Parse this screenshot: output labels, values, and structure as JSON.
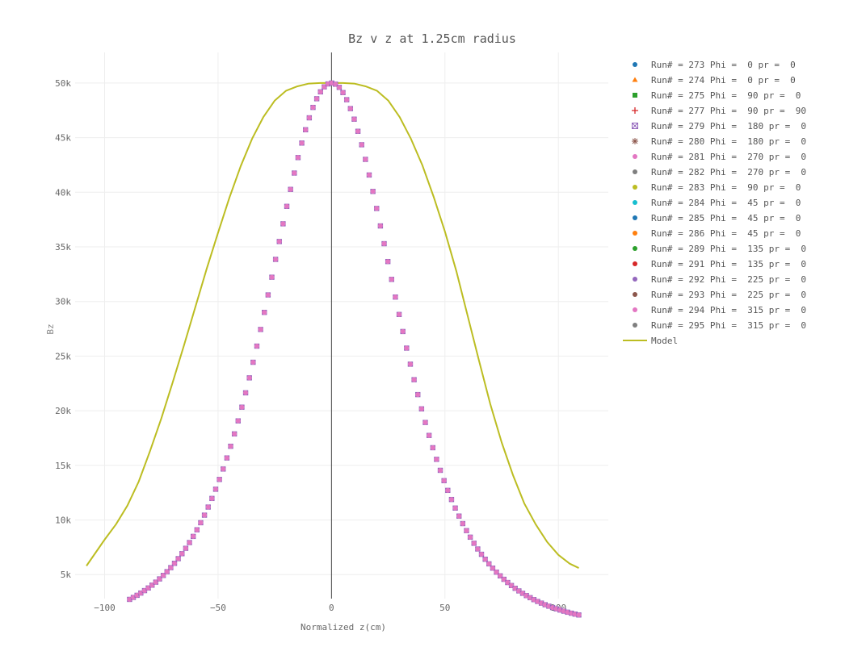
{
  "chart_data": {
    "type": "scatter",
    "title": "Bz v z at 1.25cm radius",
    "xlabel": "Normalized z(cm)",
    "ylabel": "Bz",
    "xlim": [
      -113,
      122
    ],
    "ylim": [
      2800,
      52800
    ],
    "x_ticks": [
      -100,
      -50,
      0,
      50,
      100
    ],
    "x_tick_labels": [
      "−100",
      "−50",
      "0",
      "50",
      "100"
    ],
    "y_ticks": [
      5000,
      10000,
      15000,
      20000,
      25000,
      30000,
      35000,
      40000,
      45000,
      50000
    ],
    "y_tick_labels": [
      "5k",
      "10k",
      "15k",
      "20k",
      "25k",
      "30k",
      "35k",
      "40k",
      "45k",
      "50k"
    ],
    "grid": true,
    "legend_position": "right",
    "measurement_shape": {
      "description": "Bz = amplitude / (1 + (z/scale)^2)^power, sampled at spacing",
      "amplitude": 50000,
      "scale": 60,
      "power": 2.5,
      "z_start": -89,
      "z_end": 109,
      "spacing": 1.65
    },
    "series": [
      {
        "name": "Run# = 273 Phi =  0 pr =  0",
        "color": "#1f77b4",
        "marker": "circle"
      },
      {
        "name": "Run# = 274 Phi =  0 pr =  0",
        "color": "#ff7f0e",
        "marker": "triangle-up"
      },
      {
        "name": "Run# = 275 Phi =  90 pr =  0",
        "color": "#2ca02c",
        "marker": "square"
      },
      {
        "name": "Run# = 277 Phi =  90 pr =  90",
        "color": "#d62728",
        "marker": "cross"
      },
      {
        "name": "Run# = 279 Phi =  180 pr =  0",
        "color": "#9467bd",
        "marker": "square-x-open"
      },
      {
        "name": "Run# = 280 Phi =  180 pr =  0",
        "color": "#8c564b",
        "marker": "asterisk"
      },
      {
        "name": "Run# = 281 Phi =  270 pr =  0",
        "color": "#e377c2",
        "marker": "circle"
      },
      {
        "name": "Run# = 282 Phi =  270 pr =  0",
        "color": "#7f7f7f",
        "marker": "circle"
      },
      {
        "name": "Run# = 283 Phi =  90 pr =  0",
        "color": "#bcbd22",
        "marker": "circle"
      },
      {
        "name": "Run# = 284 Phi =  45 pr =  0",
        "color": "#17becf",
        "marker": "circle"
      },
      {
        "name": "Run# = 285 Phi =  45 pr =  0",
        "color": "#1f77b4",
        "marker": "circle"
      },
      {
        "name": "Run# = 286 Phi =  45 pr =  0",
        "color": "#ff7f0e",
        "marker": "circle"
      },
      {
        "name": "Run# = 289 Phi =  135 pr =  0",
        "color": "#2ca02c",
        "marker": "circle"
      },
      {
        "name": "Run# = 291 Phi =  135 pr =  0",
        "color": "#d62728",
        "marker": "circle"
      },
      {
        "name": "Run# = 292 Phi =  225 pr =  0",
        "color": "#9467bd",
        "marker": "circle"
      },
      {
        "name": "Run# = 293 Phi =  225 pr =  0",
        "color": "#8c564b",
        "marker": "circle"
      },
      {
        "name": "Run# = 294 Phi =  315 pr =  0",
        "color": "#e377c2",
        "marker": "circle"
      },
      {
        "name": "Run# = 295 Phi =  315 pr =  0",
        "color": "#7f7f7f",
        "marker": "circle"
      }
    ],
    "model": {
      "name": "Model",
      "color": "#bcbd22",
      "x": [
        -108,
        -100,
        -95,
        -90,
        -85,
        -80,
        -75,
        -70,
        -65,
        -60,
        -55,
        -50,
        -45,
        -40,
        -35,
        -30,
        -25,
        -20,
        -15,
        -10,
        -5,
        0,
        5,
        10,
        15,
        20,
        25,
        30,
        35,
        40,
        45,
        50,
        55,
        60,
        65,
        70,
        75,
        80,
        85,
        90,
        95,
        100,
        105,
        109
      ],
      "y": [
        5800,
        8200,
        9600,
        11300,
        13500,
        16300,
        19300,
        22600,
        26000,
        29500,
        33000,
        36300,
        39500,
        42400,
        44900,
        46900,
        48400,
        49300,
        49700,
        49950,
        50000,
        50000,
        50000,
        49950,
        49700,
        49300,
        48400,
        46900,
        44900,
        42500,
        39600,
        36400,
        32800,
        28700,
        24600,
        20600,
        17100,
        14100,
        11500,
        9600,
        8000,
        6800,
        6000,
        5600
      ]
    }
  }
}
